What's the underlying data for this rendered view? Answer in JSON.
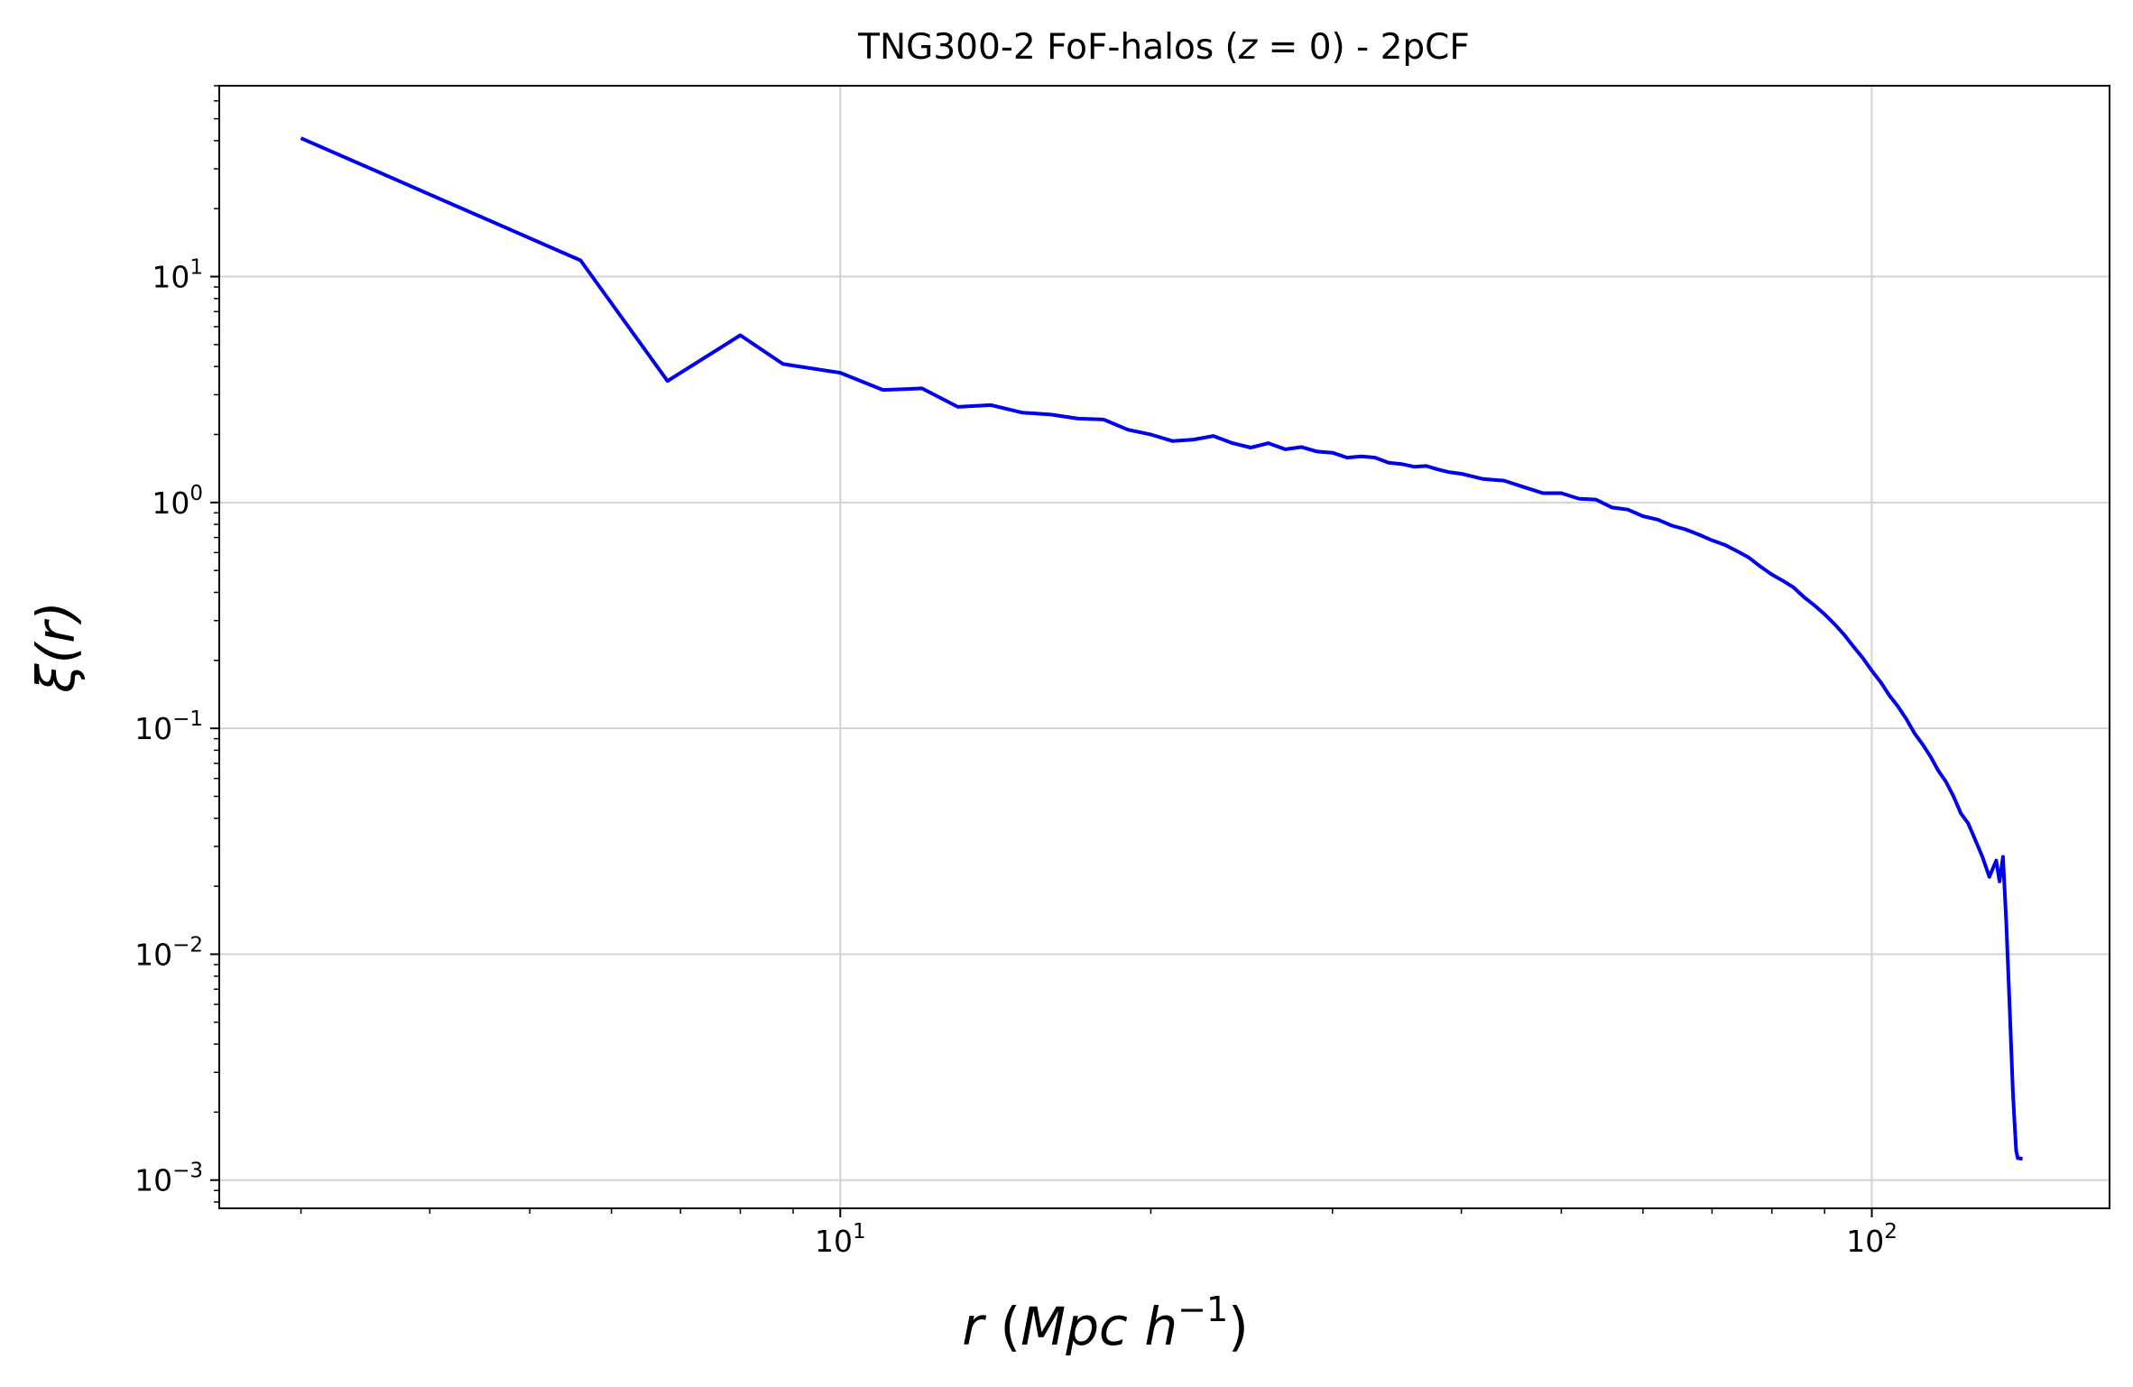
{
  "chart_data": {
    "type": "line",
    "title": "TNG300-2 FoF-halos (z = 0) - 2pCF",
    "title_parts": [
      "TNG300-2 FoF-halos (",
      "z",
      " = 0) - 2pCF"
    ],
    "xlabel": "r (Mpc h^-1)",
    "xlabel_parts": {
      "var": "r",
      "open": " (",
      "unit": "Mpc h",
      "exp": "−1",
      "close": ")"
    },
    "ylabel": "ξ(r)",
    "ylabel_parts": {
      "var": "ξ",
      "arg": "(r)"
    },
    "x_scale": "log",
    "y_scale": "log",
    "xlim": [
      2.5,
      170
    ],
    "ylim": [
      0.00075,
      70
    ],
    "grid": true,
    "line_color": "#0000ee",
    "x_ticks": [
      {
        "value": 10,
        "base": "10",
        "exp": "1"
      },
      {
        "value": 100,
        "base": "10",
        "exp": "2"
      }
    ],
    "y_ticks": [
      {
        "value": 10,
        "base": "10",
        "exp": "1"
      },
      {
        "value": 1,
        "base": "10",
        "exp": "0"
      },
      {
        "value": 0.1,
        "base": "10",
        "exp": "−1"
      },
      {
        "value": 0.01,
        "base": "10",
        "exp": "−2"
      },
      {
        "value": 0.001,
        "base": "10",
        "exp": "−3"
      }
    ],
    "series": [
      {
        "x": [
          3.0,
          5.6,
          6.8,
          8.0,
          8.8,
          10.0,
          11.0,
          12.0,
          13.0,
          14.0,
          15.0,
          16.0,
          17.0,
          18.0,
          19.0,
          20.0,
          21.0,
          22.0,
          23.0,
          24.0,
          25.0,
          26.0,
          27.0,
          28.0,
          29.0,
          30.0,
          31.0,
          32.0,
          33.0,
          34.0,
          35.0,
          36.0,
          37.0,
          38.0,
          39.0,
          40.0,
          42.0,
          44.0,
          46.0,
          48.0,
          50.0,
          52.0,
          54.0,
          56.0,
          58.0,
          60.0,
          62.0,
          64.0,
          66.0,
          68.0,
          70.0,
          72.0,
          74.0,
          76.0,
          78.0,
          80.0,
          82.0,
          84.0,
          86.0,
          88.0,
          90.0,
          92.0,
          94.0,
          96.0,
          98.0,
          100.0,
          102.0,
          104.0,
          106.0,
          108.0,
          110.0,
          112.0,
          114.0,
          116.0,
          118.0,
          120.0,
          122.0,
          124.0,
          126.0,
          128.0,
          130.0,
          132.0,
          133.0,
          134.0,
          135.0,
          136.0,
          137.0,
          137.5,
          138.0,
          138.5,
          139.0,
          140.0
        ],
        "y": [
          41,
          11.8,
          3.45,
          5.5,
          4.1,
          3.75,
          3.15,
          3.2,
          2.65,
          2.7,
          2.5,
          2.45,
          2.35,
          2.33,
          2.1,
          2.0,
          1.87,
          1.9,
          1.97,
          1.83,
          1.75,
          1.83,
          1.72,
          1.76,
          1.68,
          1.66,
          1.58,
          1.6,
          1.58,
          1.5,
          1.48,
          1.44,
          1.45,
          1.4,
          1.36,
          1.34,
          1.27,
          1.25,
          1.17,
          1.1,
          1.1,
          1.04,
          1.03,
          0.95,
          0.93,
          0.87,
          0.84,
          0.79,
          0.76,
          0.72,
          0.68,
          0.65,
          0.61,
          0.57,
          0.52,
          0.48,
          0.45,
          0.42,
          0.38,
          0.35,
          0.32,
          0.29,
          0.26,
          0.23,
          0.205,
          0.18,
          0.16,
          0.14,
          0.125,
          0.11,
          0.095,
          0.085,
          0.075,
          0.065,
          0.058,
          0.05,
          0.042,
          0.038,
          0.032,
          0.027,
          0.022,
          0.026,
          0.021,
          0.027,
          0.014,
          0.006,
          0.0025,
          0.0018,
          0.00135,
          0.00125,
          0.00125,
          0.00124
        ]
      }
    ]
  }
}
